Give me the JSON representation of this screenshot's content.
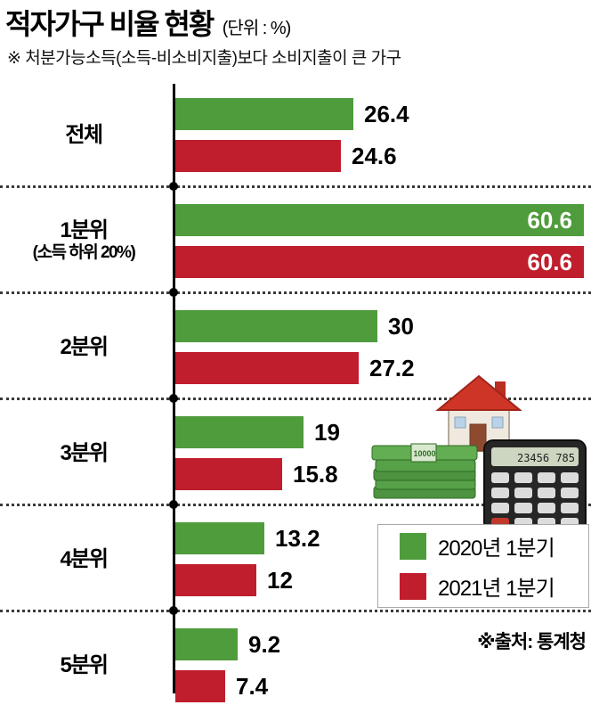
{
  "header": {
    "title": "적자가구 비율 현황",
    "unit_note": "(단위 : %)",
    "subtitle": "※ 처분가능소득(소득-비소비지출)보다 소비지출이 큰 가구"
  },
  "chart_data": {
    "type": "bar",
    "orientation": "horizontal",
    "unit": "%",
    "title": "적자가구 비율 현황",
    "categories": [
      "전체",
      "1분위 (소득 하위 20%)",
      "2분위",
      "3분위",
      "4분위",
      "5분위"
    ],
    "series": [
      {
        "name": "2020년 1분기",
        "color": "#4f9c3c",
        "values": [
          26.4,
          60.6,
          30,
          19,
          13.2,
          9.2
        ]
      },
      {
        "name": "2021년 1분기",
        "color": "#c01e2d",
        "values": [
          24.6,
          60.6,
          27.2,
          15.8,
          12,
          7.4
        ]
      }
    ],
    "xlim": [
      0,
      61.6
    ],
    "grid": false,
    "legend_position": "middle-right",
    "rows": [
      {
        "label": "전체",
        "sublabel": "",
        "values": [
          26.4,
          24.6
        ],
        "labels": [
          "26.4",
          "24.6"
        ],
        "value_label_inside": false
      },
      {
        "label": "1분위",
        "sublabel": "(소득 하위 20%)",
        "values": [
          60.6,
          60.6
        ],
        "labels": [
          "60.6",
          "60.6"
        ],
        "value_label_inside": true
      },
      {
        "label": "2분위",
        "sublabel": "",
        "values": [
          30,
          27.2
        ],
        "labels": [
          "30",
          "27.2"
        ],
        "value_label_inside": false
      },
      {
        "label": "3분위",
        "sublabel": "",
        "values": [
          19,
          15.8
        ],
        "labels": [
          "19",
          "15.8"
        ],
        "value_label_inside": false
      },
      {
        "label": "4분위",
        "sublabel": "",
        "values": [
          13.2,
          12
        ],
        "labels": [
          "13.2",
          "12"
        ],
        "value_label_inside": false
      },
      {
        "label": "5분위",
        "sublabel": "",
        "values": [
          9.2,
          7.4
        ],
        "labels": [
          "9.2",
          "7.4"
        ],
        "value_label_inside": false
      }
    ]
  },
  "legend": {
    "items": [
      {
        "label": "2020년 1분기",
        "color": "#4f9c3c"
      },
      {
        "label": "2021년 1분기",
        "color": "#c01e2d"
      }
    ]
  },
  "source": "※출처: 통계청",
  "illustration": {
    "money_text": "10000",
    "calculator_display": "23456 785"
  },
  "colors": {
    "green_2020": "#4f9c3c",
    "red_2021": "#c01e2d",
    "axis": "#000000",
    "background": "#ffffff"
  }
}
